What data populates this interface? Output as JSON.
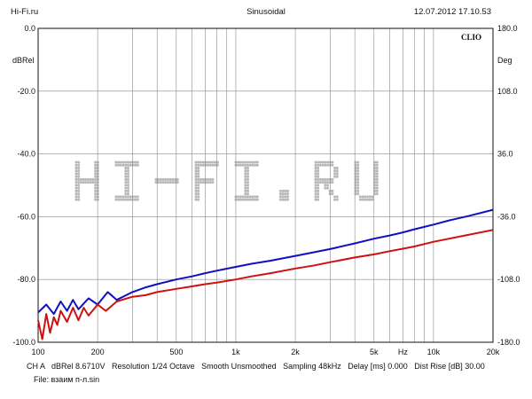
{
  "header": {
    "source": "Hi-Fi.ru",
    "mode": "Sinusoidal",
    "timestamp": "12.07.2012 17.10.53"
  },
  "brand": "CLIO",
  "watermark_text": "HI-FI.RU",
  "footer": {
    "line1": "CH A   dBRel 8.6710V   Resolution 1/24 Octave   Smooth Unsmoothed   Sampling 48kHz   Delay [ms] 0.000   Dist Rise [dB] 30.00",
    "line2": "File: взаим п-л.sin"
  },
  "chart_data": {
    "type": "line",
    "title": "Sinusoidal",
    "xlabel": "Hz",
    "ylabel": "dBRel",
    "y2label": "Deg",
    "x_scale": "log",
    "xlim": [
      100,
      20000
    ],
    "ylim": [
      -100,
      0
    ],
    "y2lim": [
      -180,
      180
    ],
    "grid": true,
    "x_ticks": [
      {
        "value": 100,
        "label": "100"
      },
      {
        "value": 200,
        "label": "200"
      },
      {
        "value": 500,
        "label": "500"
      },
      {
        "value": 1000,
        "label": "1k"
      },
      {
        "value": 2000,
        "label": "2k"
      },
      {
        "value": 5000,
        "label": "5k"
      },
      {
        "value": 10000,
        "label": "10k"
      },
      {
        "value": 20000,
        "label": "20k"
      }
    ],
    "x_unit_label": {
      "value": 7000,
      "label": "Hz"
    },
    "y_ticks": [
      {
        "value": 0,
        "label": "0.0"
      },
      {
        "value": -20,
        "label": "-20.0"
      },
      {
        "value": -40,
        "label": "-40.0"
      },
      {
        "value": -60,
        "label": "-60.0"
      },
      {
        "value": -80,
        "label": "-80.0"
      },
      {
        "value": -100,
        "label": "-100.0"
      }
    ],
    "y2_ticks": [
      {
        "value": 180,
        "label": "180.0"
      },
      {
        "value": 108,
        "label": "108.0"
      },
      {
        "value": 36,
        "label": "36.0"
      },
      {
        "value": -36,
        "label": "-36.0"
      },
      {
        "value": -108,
        "label": "-108.0"
      },
      {
        "value": -180,
        "label": "-180.0"
      }
    ],
    "series": [
      {
        "color": "#1010c0",
        "x": [
          100,
          110,
          120,
          130,
          140,
          150,
          160,
          180,
          200,
          225,
          250,
          300,
          350,
          400,
          500,
          600,
          700,
          800,
          1000,
          1200,
          1500,
          2000,
          2500,
          3000,
          4000,
          5000,
          6000,
          7000,
          8000,
          10000,
          12000,
          15000,
          20000
        ],
        "y": [
          -90.5,
          -88,
          -91,
          -87,
          -90,
          -86.5,
          -89.5,
          -86,
          -88,
          -84,
          -86.5,
          -84,
          -82.5,
          -81.5,
          -80,
          -79,
          -78,
          -77.2,
          -76,
          -75,
          -74,
          -72.5,
          -71.3,
          -70.3,
          -68.5,
          -67,
          -66,
          -65,
          -64,
          -62.5,
          -61.2,
          -59.8,
          -57.8
        ]
      },
      {
        "color": "#d01010",
        "x": [
          100,
          105,
          110,
          115,
          120,
          125,
          130,
          140,
          150,
          160,
          170,
          180,
          200,
          220,
          250,
          300,
          350,
          400,
          500,
          600,
          700,
          800,
          1000,
          1200,
          1500,
          2000,
          2500,
          3000,
          4000,
          5000,
          6000,
          7000,
          8000,
          10000,
          12000,
          15000,
          20000
        ],
        "y": [
          -93,
          -99,
          -91,
          -97,
          -92,
          -94.5,
          -90,
          -93.5,
          -89,
          -93,
          -89,
          -91.5,
          -88,
          -90,
          -87,
          -85.5,
          -85,
          -84,
          -83,
          -82.2,
          -81.5,
          -81,
          -80,
          -79,
          -78,
          -76.5,
          -75.5,
          -74.5,
          -73,
          -72,
          -71,
          -70.2,
          -69.5,
          -68,
          -67,
          -65.8,
          -64.2
        ]
      }
    ]
  }
}
